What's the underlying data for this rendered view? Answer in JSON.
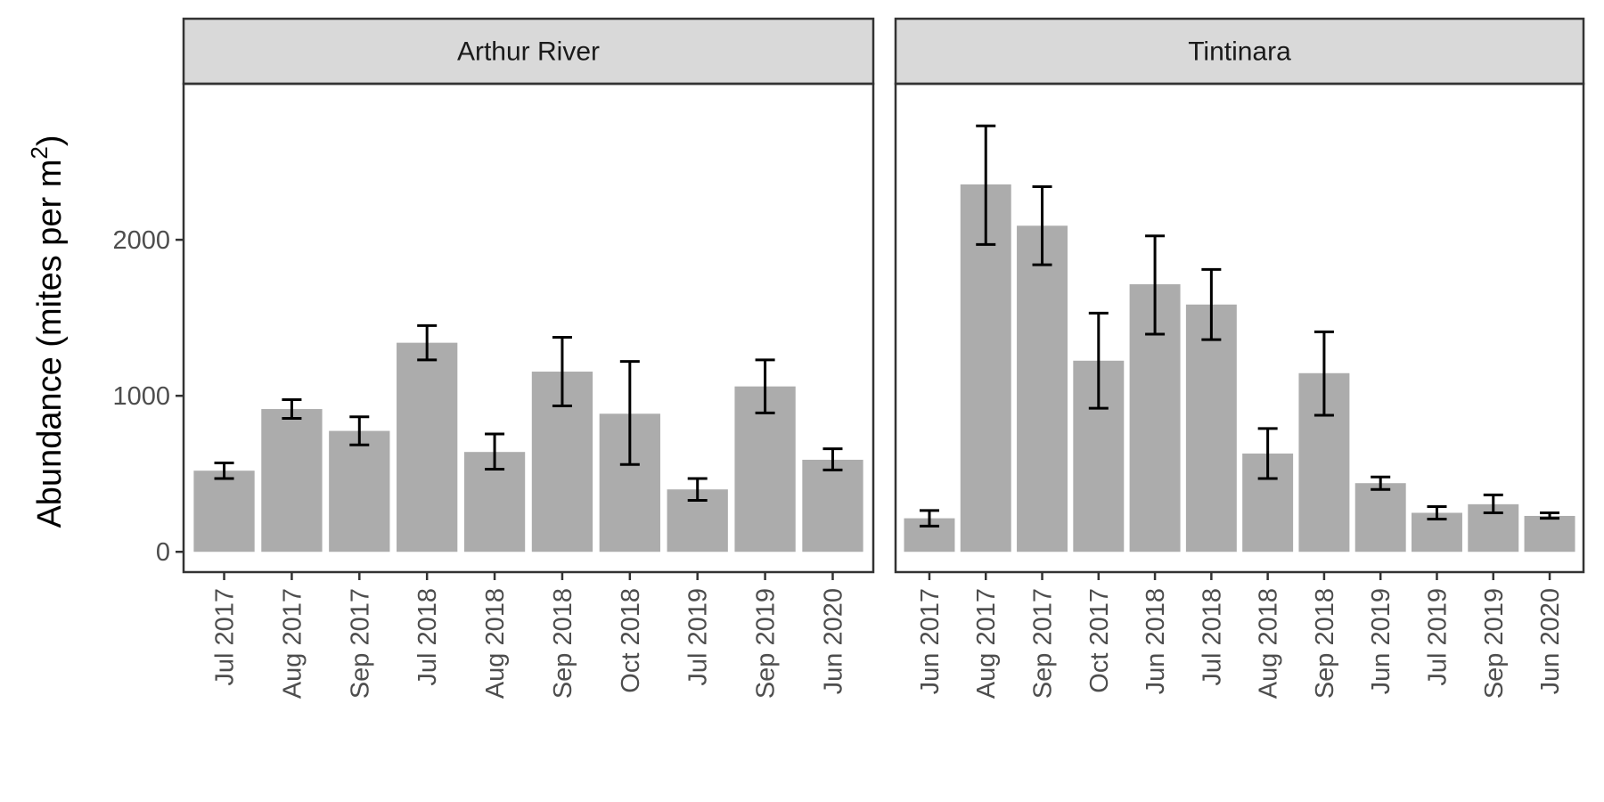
{
  "chart_data": {
    "type": "bar",
    "ylabel_prefix": "Abundance (mites per m",
    "ylabel_sup": "2",
    "ylabel_suffix": ")",
    "ylim": [
      -130,
      3000
    ],
    "yticks": [
      0,
      1000,
      2000
    ],
    "grid": false,
    "colors": {
      "bar": "#acacac",
      "error": "#000000",
      "strip": "#d9d9d9",
      "border": "#333333"
    },
    "panels": [
      {
        "title": "Arthur River",
        "categories": [
          "Jul 2017",
          "Aug 2017",
          "Sep 2017",
          "Jul 2018",
          "Aug 2018",
          "Sep 2018",
          "Oct 2018",
          "Jul 2019",
          "Sep 2019",
          "Jun 2020"
        ],
        "values": [
          520,
          915,
          775,
          1340,
          640,
          1155,
          885,
          400,
          1060,
          590
        ],
        "error_low": [
          470,
          855,
          685,
          1230,
          530,
          935,
          560,
          330,
          890,
          525
        ],
        "error_high": [
          570,
          975,
          865,
          1450,
          755,
          1375,
          1220,
          470,
          1230,
          660
        ]
      },
      {
        "title": "Tintinara",
        "categories": [
          "Jun 2017",
          "Aug 2017",
          "Sep 2017",
          "Oct 2017",
          "Jun 2018",
          "Jul 2018",
          "Aug 2018",
          "Sep 2018",
          "Jun 2019",
          "Jul 2019",
          "Sep 2019",
          "Jun 2020"
        ],
        "values": [
          215,
          2355,
          2090,
          1225,
          1715,
          1585,
          630,
          1145,
          440,
          250,
          305,
          230
        ],
        "error_low": [
          165,
          1970,
          1840,
          920,
          1395,
          1360,
          470,
          875,
          400,
          210,
          250,
          215
        ],
        "error_high": [
          265,
          2730,
          2340,
          1530,
          2025,
          1810,
          790,
          1410,
          480,
          290,
          365,
          250
        ]
      }
    ]
  }
}
